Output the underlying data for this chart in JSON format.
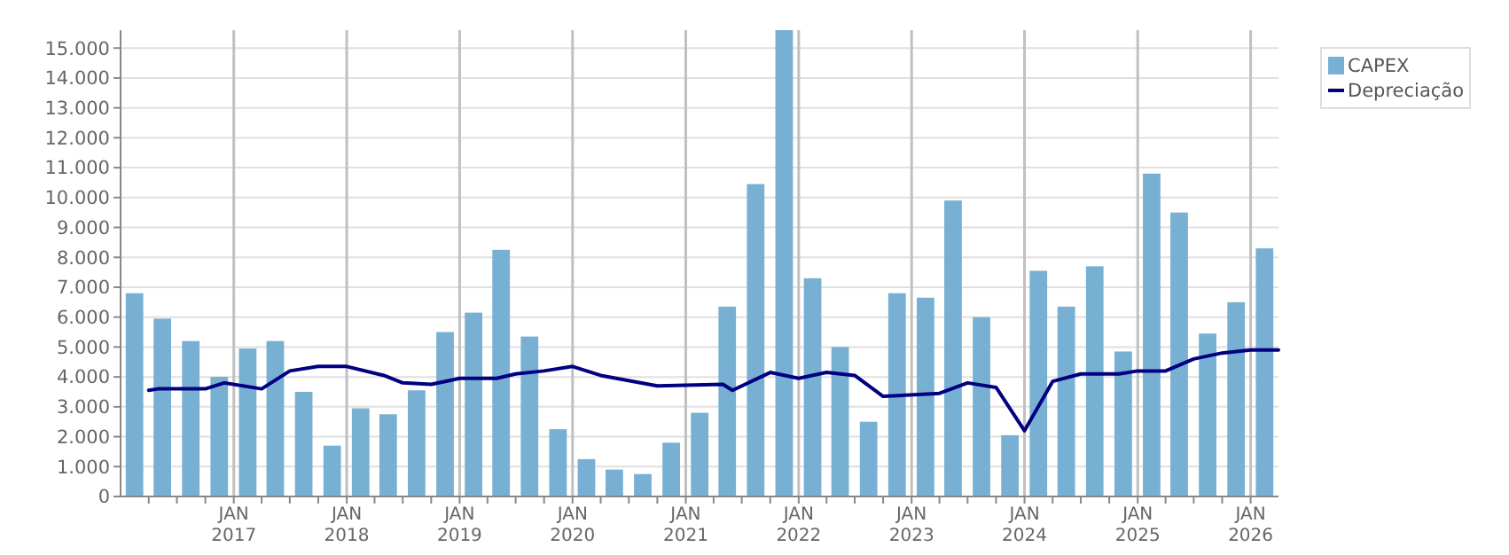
{
  "chart_data": {
    "type": "bar",
    "x": [
      "2016-02-15",
      "2016-05-15",
      "2016-08-15",
      "2016-11-15",
      "2017-02-15",
      "2017-05-15",
      "2017-08-15",
      "2017-11-15",
      "2018-02-15",
      "2018-05-15",
      "2018-08-15",
      "2018-11-15",
      "2019-02-15",
      "2019-05-15",
      "2019-08-15",
      "2019-11-15",
      "2020-02-15",
      "2020-05-15",
      "2020-08-15",
      "2020-11-15",
      "2021-02-15",
      "2021-05-15",
      "2021-08-15",
      "2021-11-15",
      "2022-02-15",
      "2022-05-15",
      "2022-08-15",
      "2022-11-15",
      "2023-02-15",
      "2023-05-15",
      "2023-08-15",
      "2023-11-15",
      "2024-02-15",
      "2024-05-15",
      "2024-08-15",
      "2024-11-15",
      "2025-02-15",
      "2025-05-15",
      "2025-08-15",
      "2025-11-15",
      "2026-02-15"
    ],
    "series": [
      {
        "name": "CAPEX",
        "color": "#77b0d3",
        "values": [
          6800,
          5950,
          5200,
          4000,
          4950,
          5200,
          3500,
          1700,
          2950,
          2750,
          3550,
          5500,
          6150,
          8250,
          5350,
          2250,
          1250,
          900,
          750,
          1800,
          2800,
          6350,
          10450,
          15600,
          7300,
          5000,
          2500,
          6800,
          6650,
          9900,
          6000,
          2050,
          7550,
          6350,
          7700,
          4850,
          10800,
          9500,
          5450,
          6500,
          8300
        ]
      },
      {
        "name": "Depreciação",
        "type": "line",
        "color": "#000080",
        "x": [
          "2016-04",
          "2016-05",
          "2016-10",
          "2016-12",
          "2017-04",
          "2017-07",
          "2017-10",
          "2018-01",
          "2018-05",
          "2018-07",
          "2018-10",
          "2019-01",
          "2019-05",
          "2019-07",
          "2019-10",
          "2020-01",
          "2020-04",
          "2020-10",
          "2021-05",
          "2021-06",
          "2021-10",
          "2022-01",
          "2022-04",
          "2022-07",
          "2022-10",
          "2023-04",
          "2023-07",
          "2023-10",
          "2024-01",
          "2024-04",
          "2024-07",
          "2024-11",
          "2025-01",
          "2025-04",
          "2025-07",
          "2025-10",
          "2026-01",
          "2026-04"
        ],
        "values": [
          3550,
          3600,
          3600,
          3800,
          3600,
          4200,
          4350,
          4350,
          4050,
          3800,
          3750,
          3950,
          3950,
          4100,
          4200,
          4350,
          4050,
          3700,
          3750,
          3550,
          4150,
          3950,
          4150,
          4050,
          3350,
          3450,
          3800,
          3650,
          2200,
          3850,
          4100,
          4100,
          4200,
          4200,
          4600,
          4800,
          4900,
          4900
        ]
      }
    ],
    "xlim": [
      "2016-01-01",
      "2026-04-01"
    ],
    "xticks": [
      {
        "value": "2016-04-01",
        "label": null
      },
      {
        "value": "2016-07-01",
        "label": null
      },
      {
        "value": "2016-10-01",
        "label": null
      },
      {
        "value": "2017-01-01",
        "label": "JAN 2017"
      },
      {
        "value": "2017-04-01",
        "label": null
      },
      {
        "value": "2017-07-01",
        "label": null
      },
      {
        "value": "2017-10-01",
        "label": null
      },
      {
        "value": "2018-01-01",
        "label": "JAN 2018"
      },
      {
        "value": "2018-04-01",
        "label": null
      },
      {
        "value": "2018-07-01",
        "label": null
      },
      {
        "value": "2018-10-01",
        "label": null
      },
      {
        "value": "2019-01-01",
        "label": "JAN 2019"
      },
      {
        "value": "2019-04-01",
        "label": null
      },
      {
        "value": "2019-07-01",
        "label": null
      },
      {
        "value": "2019-10-01",
        "label": null
      },
      {
        "value": "2020-01-01",
        "label": "JAN 2020"
      },
      {
        "value": "2020-04-01",
        "label": null
      },
      {
        "value": "2020-07-01",
        "label": null
      },
      {
        "value": "2020-10-01",
        "label": null
      },
      {
        "value": "2021-01-01",
        "label": "JAN 2021"
      },
      {
        "value": "2021-04-01",
        "label": null
      },
      {
        "value": "2021-07-01",
        "label": null
      },
      {
        "value": "2021-10-01",
        "label": null
      },
      {
        "value": "2022-01-01",
        "label": "JAN 2022"
      },
      {
        "value": "2022-04-01",
        "label": null
      },
      {
        "value": "2022-07-01",
        "label": null
      },
      {
        "value": "2022-10-01",
        "label": null
      },
      {
        "value": "2023-01-01",
        "label": "JAN 2023"
      },
      {
        "value": "2023-04-01",
        "label": null
      },
      {
        "value": "2023-07-01",
        "label": null
      },
      {
        "value": "2023-10-01",
        "label": null
      },
      {
        "value": "2024-01-01",
        "label": "JAN 2024"
      },
      {
        "value": "2024-04-01",
        "label": null
      },
      {
        "value": "2024-07-01",
        "label": null
      },
      {
        "value": "2024-10-01",
        "label": null
      },
      {
        "value": "2025-01-01",
        "label": "JAN 2025"
      },
      {
        "value": "2025-04-01",
        "label": null
      },
      {
        "value": "2025-07-01",
        "label": null
      },
      {
        "value": "2025-10-01",
        "label": null
      },
      {
        "value": "2026-01-01",
        "label": "JAN 2026"
      }
    ],
    "ylim": [
      0,
      15600
    ],
    "yticks": [
      0,
      {
        "value": 1000,
        "label": "1.000"
      },
      {
        "value": 2000,
        "label": "2.000"
      },
      {
        "value": 3000,
        "label": "3.000"
      },
      {
        "value": 4000,
        "label": "4.000"
      },
      {
        "value": 5000,
        "label": "5.000"
      },
      {
        "value": 6000,
        "label": "6.000"
      },
      {
        "value": 7000,
        "label": "7.000"
      },
      {
        "value": 8000,
        "label": "8.000"
      },
      {
        "value": 9000,
        "label": "9.000"
      },
      {
        "value": 10000,
        "label": "10.000"
      },
      {
        "value": 11000,
        "label": "11.000"
      },
      {
        "value": 12000,
        "label": "12.000"
      },
      {
        "value": 13000,
        "label": "13.000"
      },
      {
        "value": 14000,
        "label": "14.000"
      },
      {
        "value": 15000,
        "label": "15.000"
      }
    ],
    "grid": true,
    "legend": "top right",
    "marker": "none",
    "line_style": "solid"
  }
}
